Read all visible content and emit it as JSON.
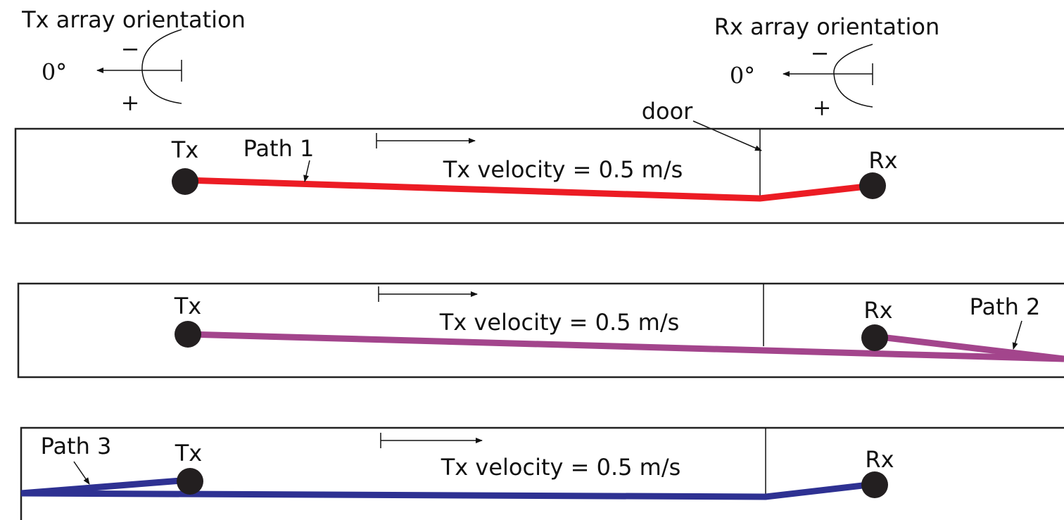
{
  "orientation": [
    {
      "title": "Tx array orientation",
      "angle": "0°",
      "minus": "−",
      "plus": "+"
    },
    {
      "title": "Rx array orientation",
      "angle": "0°",
      "minus": "−",
      "plus": "+"
    }
  ],
  "door_label": "door",
  "panels": [
    {
      "tx": "Tx",
      "rx": "Rx",
      "path": "Path 1",
      "velocity": "Tx velocity = 0.5 m/s"
    },
    {
      "tx": "Tx",
      "rx": "Rx",
      "path": "Path 2",
      "velocity": "Tx velocity = 0.5 m/s"
    },
    {
      "tx": "Tx",
      "rx": "Rx",
      "path": "Path 3",
      "velocity": "Tx velocity = 0.5 m/s"
    }
  ]
}
